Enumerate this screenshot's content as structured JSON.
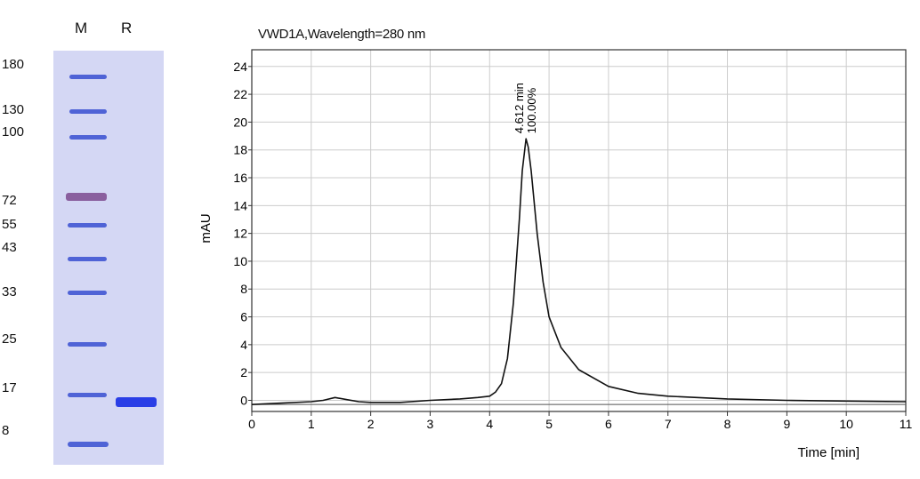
{
  "gel": {
    "lanes": [
      "M",
      "R"
    ],
    "marker_sizes": [
      "180",
      "130",
      "100",
      "72",
      "55",
      "43",
      "33",
      "25",
      "17",
      "8"
    ],
    "colors": {
      "background": "#d4d7f4",
      "marker_band": "#4f63d6",
      "marker_72_band": "#8a5f9e",
      "sample_band": "#2a3ee6"
    }
  },
  "chart_data": {
    "type": "line",
    "title": "VWD1A,Wavelength=280 nm",
    "xlabel": "Time [min]",
    "ylabel": "mAU",
    "xlim": [
      0,
      11
    ],
    "ylim": [
      -0.8,
      25.2
    ],
    "x_ticks": [
      "0",
      "1",
      "2",
      "3",
      "4",
      "5",
      "6",
      "7",
      "8",
      "9",
      "10",
      "11"
    ],
    "y_ticks": [
      "0",
      "2",
      "4",
      "6",
      "8",
      "10",
      "12",
      "14",
      "16",
      "18",
      "20",
      "22",
      "24"
    ],
    "grid": true,
    "series": [
      {
        "x": [
          0,
          0.5,
          1.0,
          1.2,
          1.4,
          1.6,
          1.8,
          2.0,
          2.5,
          3.0,
          3.5,
          3.8,
          4.0,
          4.1,
          4.2,
          4.3,
          4.4,
          4.5,
          4.55,
          4.612,
          4.65,
          4.7,
          4.8,
          4.9,
          5.0,
          5.2,
          5.5,
          6.0,
          6.5,
          7.0,
          8.0,
          9.0,
          10.0,
          11.0
        ],
        "y": [
          -0.3,
          -0.2,
          -0.1,
          0.0,
          0.2,
          0.05,
          -0.1,
          -0.15,
          -0.15,
          0.0,
          0.1,
          0.2,
          0.3,
          0.6,
          1.2,
          3.0,
          7.0,
          13.0,
          16.5,
          18.8,
          18.2,
          16.5,
          12.0,
          8.5,
          6.0,
          3.8,
          2.2,
          1.0,
          0.5,
          0.3,
          0.1,
          0.0,
          -0.05,
          -0.1
        ]
      }
    ],
    "baseline": -0.3,
    "peak_annotation": {
      "time": "4.612 min",
      "area_pct": "100.00%",
      "x": 4.612,
      "y": 18.8
    },
    "line_color": "#111111",
    "grid_color": "#cccccc"
  }
}
